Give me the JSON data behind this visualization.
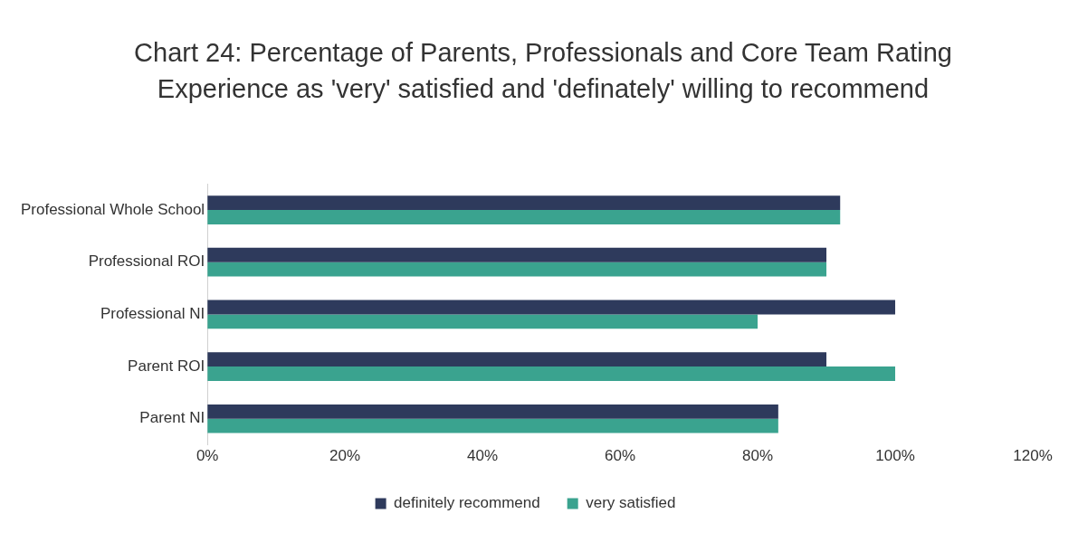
{
  "chart_data": {
    "type": "bar",
    "orientation": "horizontal",
    "title": "Chart 24: Percentage of Parents, Professionals and Core Team Rating Experience as 'very' satisfied and 'definately' willing to recommend",
    "categories": [
      "Professional Whole School",
      "Professional ROI",
      "Professional NI",
      "Parent ROI",
      "Parent NI"
    ],
    "series": [
      {
        "name": "definitely recommend",
        "color": "#2e3a5c",
        "values": [
          92,
          90,
          100,
          90,
          83
        ]
      },
      {
        "name": "very satisfied",
        "color": "#3aa38f",
        "values": [
          92,
          90,
          80,
          100,
          83
        ]
      }
    ],
    "xlim": [
      0,
      120
    ],
    "xticks": [
      {
        "value": 0,
        "label": "0%"
      },
      {
        "value": 20,
        "label": "20%"
      },
      {
        "value": 40,
        "label": "40%"
      },
      {
        "value": 60,
        "label": "60%"
      },
      {
        "value": 80,
        "label": "80%"
      },
      {
        "value": 100,
        "label": "100%"
      },
      {
        "value": 120,
        "label": "120%"
      }
    ],
    "grid": false,
    "legend": "bottom"
  }
}
